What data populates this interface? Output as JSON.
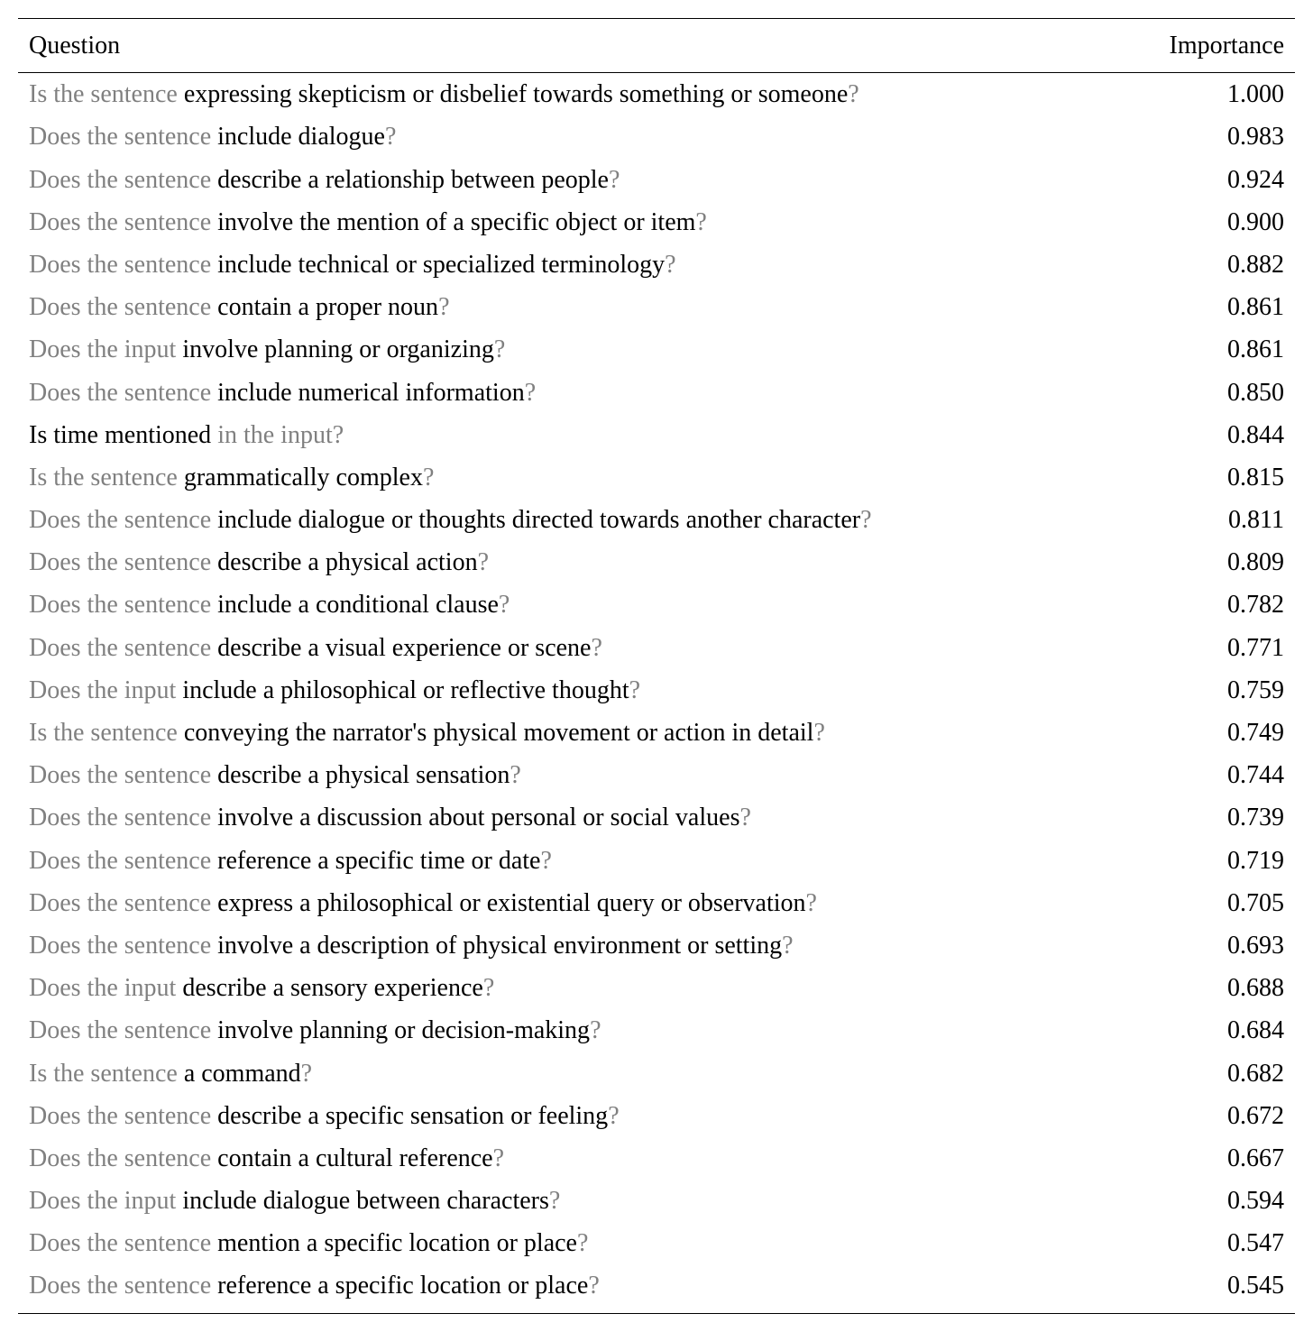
{
  "table": {
    "headers": {
      "question": "Question",
      "importance": "Importance"
    },
    "rows": [
      {
        "parts": [
          {
            "text": "Is the sentence ",
            "color": "gray"
          },
          {
            "text": "expressing skepticism or disbelief towards something or someone",
            "color": "black"
          },
          {
            "text": "?",
            "color": "gray"
          }
        ],
        "importance": "1.000"
      },
      {
        "parts": [
          {
            "text": "Does the sentence ",
            "color": "gray"
          },
          {
            "text": "include dialogue",
            "color": "black"
          },
          {
            "text": "?",
            "color": "gray"
          }
        ],
        "importance": "0.983"
      },
      {
        "parts": [
          {
            "text": "Does the sentence ",
            "color": "gray"
          },
          {
            "text": "describe a relationship between people",
            "color": "black"
          },
          {
            "text": "?",
            "color": "gray"
          }
        ],
        "importance": "0.924"
      },
      {
        "parts": [
          {
            "text": "Does the sentence ",
            "color": "gray"
          },
          {
            "text": "involve the mention of a specific object or item",
            "color": "black"
          },
          {
            "text": "?",
            "color": "gray"
          }
        ],
        "importance": "0.900"
      },
      {
        "parts": [
          {
            "text": "Does the sentence ",
            "color": "gray"
          },
          {
            "text": "include technical or specialized terminology",
            "color": "black"
          },
          {
            "text": "?",
            "color": "gray"
          }
        ],
        "importance": "0.882"
      },
      {
        "parts": [
          {
            "text": "Does the sentence ",
            "color": "gray"
          },
          {
            "text": "contain a proper noun",
            "color": "black"
          },
          {
            "text": "?",
            "color": "gray"
          }
        ],
        "importance": "0.861"
      },
      {
        "parts": [
          {
            "text": "Does the input ",
            "color": "gray"
          },
          {
            "text": "involve planning or organizing",
            "color": "black"
          },
          {
            "text": "?",
            "color": "gray"
          }
        ],
        "importance": "0.861"
      },
      {
        "parts": [
          {
            "text": "Does the sentence ",
            "color": "gray"
          },
          {
            "text": "include numerical information",
            "color": "black"
          },
          {
            "text": "?",
            "color": "gray"
          }
        ],
        "importance": "0.850"
      },
      {
        "parts": [
          {
            "text": "Is time mentioned ",
            "color": "black"
          },
          {
            "text": "in the input?",
            "color": "gray"
          }
        ],
        "importance": "0.844"
      },
      {
        "parts": [
          {
            "text": "Is the sentence ",
            "color": "gray"
          },
          {
            "text": "grammatically complex",
            "color": "black"
          },
          {
            "text": "?",
            "color": "gray"
          }
        ],
        "importance": "0.815"
      },
      {
        "parts": [
          {
            "text": "Does the sentence ",
            "color": "gray"
          },
          {
            "text": "include dialogue or thoughts directed towards another character",
            "color": "black"
          },
          {
            "text": "?",
            "color": "gray"
          }
        ],
        "importance": "0.811"
      },
      {
        "parts": [
          {
            "text": "Does the sentence ",
            "color": "gray"
          },
          {
            "text": "describe a physical action",
            "color": "black"
          },
          {
            "text": "?",
            "color": "gray"
          }
        ],
        "importance": "0.809"
      },
      {
        "parts": [
          {
            "text": "Does the sentence ",
            "color": "gray"
          },
          {
            "text": "include a conditional clause",
            "color": "black"
          },
          {
            "text": "?",
            "color": "gray"
          }
        ],
        "importance": "0.782"
      },
      {
        "parts": [
          {
            "text": "Does the sentence ",
            "color": "gray"
          },
          {
            "text": "describe a visual experience or scene",
            "color": "black"
          },
          {
            "text": "?",
            "color": "gray"
          }
        ],
        "importance": "0.771"
      },
      {
        "parts": [
          {
            "text": "Does the input ",
            "color": "gray"
          },
          {
            "text": "include a philosophical or reflective thought",
            "color": "black"
          },
          {
            "text": "?",
            "color": "gray"
          }
        ],
        "importance": "0.759"
      },
      {
        "parts": [
          {
            "text": "Is the sentence ",
            "color": "gray"
          },
          {
            "text": "conveying the narrator's physical movement or action in detail",
            "color": "black"
          },
          {
            "text": "?",
            "color": "gray"
          }
        ],
        "importance": "0.749"
      },
      {
        "parts": [
          {
            "text": "Does the sentence ",
            "color": "gray"
          },
          {
            "text": "describe a physical sensation",
            "color": "black"
          },
          {
            "text": "?",
            "color": "gray"
          }
        ],
        "importance": "0.744"
      },
      {
        "parts": [
          {
            "text": "Does the sentence ",
            "color": "gray"
          },
          {
            "text": "involve a discussion about personal or social values",
            "color": "black"
          },
          {
            "text": "?",
            "color": "gray"
          }
        ],
        "importance": "0.739"
      },
      {
        "parts": [
          {
            "text": "Does the sentence ",
            "color": "gray"
          },
          {
            "text": "reference a specific time or date",
            "color": "black"
          },
          {
            "text": "?",
            "color": "gray"
          }
        ],
        "importance": "0.719"
      },
      {
        "parts": [
          {
            "text": "Does the sentence ",
            "color": "gray"
          },
          {
            "text": "express a philosophical or existential query or observation",
            "color": "black"
          },
          {
            "text": "?",
            "color": "gray"
          }
        ],
        "importance": "0.705"
      },
      {
        "parts": [
          {
            "text": "Does the sentence ",
            "color": "gray"
          },
          {
            "text": "involve a description of physical environment or setting",
            "color": "black"
          },
          {
            "text": "?",
            "color": "gray"
          }
        ],
        "importance": "0.693"
      },
      {
        "parts": [
          {
            "text": "Does the input ",
            "color": "gray"
          },
          {
            "text": "describe a sensory experience",
            "color": "black"
          },
          {
            "text": "?",
            "color": "gray"
          }
        ],
        "importance": "0.688"
      },
      {
        "parts": [
          {
            "text": "Does the sentence ",
            "color": "gray"
          },
          {
            "text": "involve planning or decision-making",
            "color": "black"
          },
          {
            "text": "?",
            "color": "gray"
          }
        ],
        "importance": "0.684"
      },
      {
        "parts": [
          {
            "text": "Is the sentence ",
            "color": "gray"
          },
          {
            "text": "a command",
            "color": "black"
          },
          {
            "text": "?",
            "color": "gray"
          }
        ],
        "importance": "0.682"
      },
      {
        "parts": [
          {
            "text": "Does the sentence ",
            "color": "gray"
          },
          {
            "text": "describe a specific sensation or feeling",
            "color": "black"
          },
          {
            "text": "?",
            "color": "gray"
          }
        ],
        "importance": "0.672"
      },
      {
        "parts": [
          {
            "text": "Does the sentence ",
            "color": "gray"
          },
          {
            "text": "contain a cultural reference",
            "color": "black"
          },
          {
            "text": "?",
            "color": "gray"
          }
        ],
        "importance": "0.667"
      },
      {
        "parts": [
          {
            "text": "Does the input ",
            "color": "gray"
          },
          {
            "text": "include dialogue between characters",
            "color": "black"
          },
          {
            "text": "?",
            "color": "gray"
          }
        ],
        "importance": "0.594"
      },
      {
        "parts": [
          {
            "text": "Does the sentence ",
            "color": "gray"
          },
          {
            "text": "mention a specific location or place",
            "color": "black"
          },
          {
            "text": "?",
            "color": "gray"
          }
        ],
        "importance": "0.547"
      },
      {
        "parts": [
          {
            "text": "Does the sentence ",
            "color": "gray"
          },
          {
            "text": "reference a specific location or place",
            "color": "black"
          },
          {
            "text": "?",
            "color": "gray"
          }
        ],
        "importance": "0.545"
      }
    ]
  }
}
